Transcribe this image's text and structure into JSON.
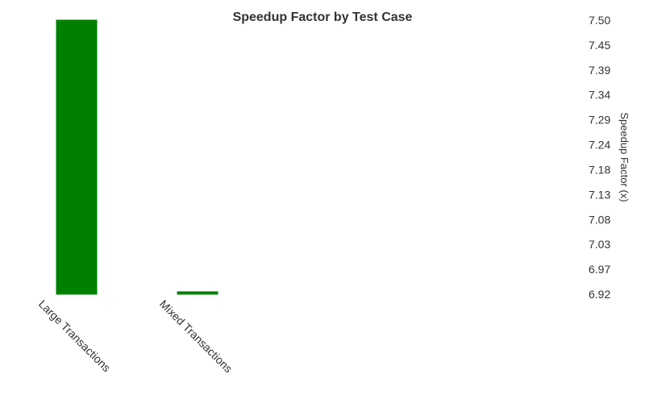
{
  "chart_data": {
    "type": "bar",
    "title": "Speedup Factor by Test Case",
    "xlabel": "",
    "ylabel": "Speedup Factor (x)",
    "categories": [
      "Large Transactions",
      "Mixed Transactions"
    ],
    "values": [
      7.5,
      6.92
    ],
    "ylim": [
      6.92,
      7.5
    ],
    "yticks": [
      "7.50",
      "7.45",
      "7.39",
      "7.34",
      "7.29",
      "7.24",
      "7.18",
      "7.13",
      "7.08",
      "7.03",
      "6.97",
      "6.92"
    ],
    "y_axis_side": "right",
    "grid": false,
    "legend": false,
    "bar_color": "#008000"
  }
}
